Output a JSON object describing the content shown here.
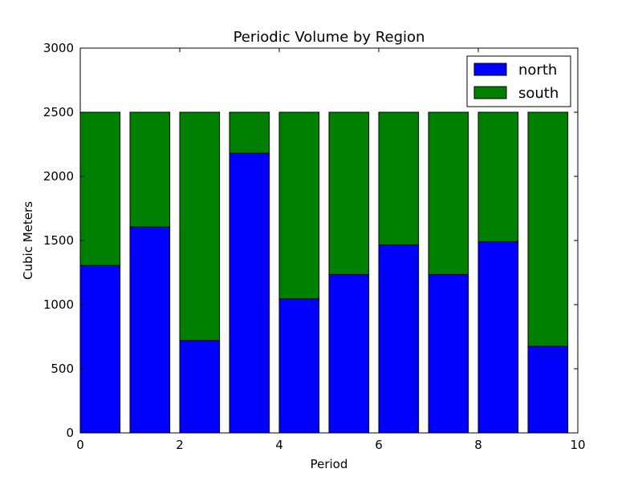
{
  "chart_data": {
    "type": "bar",
    "stacked": true,
    "title": "Periodic Volume by Region",
    "xlabel": "Period",
    "ylabel": "Cubic Meters",
    "xlim": [
      0,
      10
    ],
    "ylim": [
      0,
      3000
    ],
    "x": [
      0,
      1,
      2,
      3,
      4,
      5,
      6,
      7,
      8,
      9
    ],
    "bar_width": 0.8,
    "xticks": [
      0,
      2,
      4,
      6,
      8,
      10
    ],
    "yticks": [
      0,
      500,
      1000,
      1500,
      2000,
      2500,
      3000
    ],
    "legend_position": "top-right",
    "series": [
      {
        "name": "north",
        "color": "#0000ff",
        "values": [
          1305,
          1605,
          720,
          2180,
          1045,
          1235,
          1465,
          1235,
          1490,
          675
        ]
      },
      {
        "name": "south",
        "color": "#008000",
        "values": [
          1195,
          895,
          1780,
          320,
          1455,
          1265,
          1035,
          1265,
          1010,
          1825
        ]
      }
    ]
  }
}
